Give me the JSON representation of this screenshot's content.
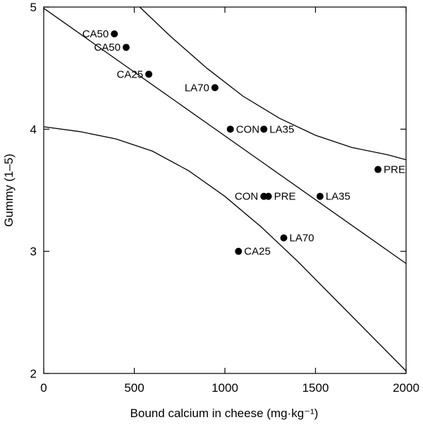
{
  "chart_data": {
    "type": "scatter",
    "title": "",
    "xlabel": "Bound calcium in cheese (mg·kg⁻¹)",
    "ylabel": "Gummy (1–5)",
    "xlim": [
      0,
      2000
    ],
    "ylim": [
      2,
      5
    ],
    "x_ticks": [
      0,
      500,
      1000,
      1500,
      2000
    ],
    "y_ticks": [
      2,
      3,
      4,
      5
    ],
    "grid": false,
    "legend": "none",
    "points": [
      {
        "label": "CA50",
        "x": 390,
        "y": 4.78
      },
      {
        "label": "CA50",
        "x": 455,
        "y": 4.67
      },
      {
        "label": "CA25",
        "x": 580,
        "y": 4.45
      },
      {
        "label": "LA70",
        "x": 945,
        "y": 4.34
      },
      {
        "label": "CON",
        "x": 1030,
        "y": 4.0
      },
      {
        "label": "LA35",
        "x": 1215,
        "y": 4.0
      },
      {
        "label": "PRE",
        "x": 1845,
        "y": 3.67
      },
      {
        "label": "CON",
        "x": 1215,
        "y": 3.45
      },
      {
        "label": "PRE",
        "x": 1240,
        "y": 3.45
      },
      {
        "label": "LA35",
        "x": 1525,
        "y": 3.45
      },
      {
        "label": "LA70",
        "x": 1325,
        "y": 3.11
      },
      {
        "label": "CA25",
        "x": 1075,
        "y": 3.0
      }
    ],
    "regression_line": [
      [
        0,
        4.99
      ],
      [
        2000,
        2.9
      ]
    ],
    "upper_band": [
      [
        530,
        5.0
      ],
      [
        700,
        4.76
      ],
      [
        900,
        4.5
      ],
      [
        1100,
        4.27
      ],
      [
        1300,
        4.09
      ],
      [
        1500,
        3.95
      ],
      [
        1700,
        3.85
      ],
      [
        1900,
        3.79
      ],
      [
        2000,
        3.75
      ]
    ],
    "lower_band": [
      [
        0,
        4.02
      ],
      [
        200,
        3.98
      ],
      [
        400,
        3.92
      ],
      [
        600,
        3.82
      ],
      [
        800,
        3.66
      ],
      [
        1000,
        3.45
      ],
      [
        1200,
        3.2
      ],
      [
        1400,
        2.92
      ],
      [
        1600,
        2.62
      ],
      [
        1800,
        2.32
      ],
      [
        2000,
        2.02
      ]
    ]
  }
}
